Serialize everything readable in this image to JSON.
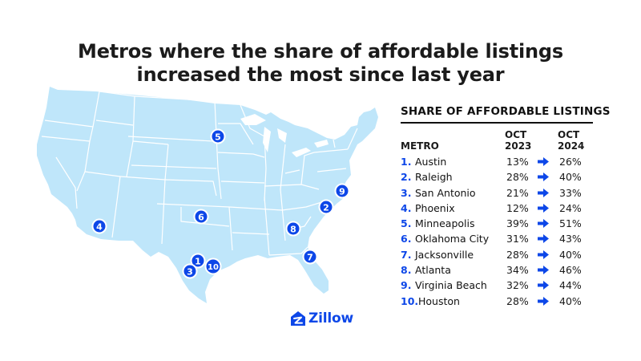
{
  "title": {
    "line1": "Metros where the share of affordable listings",
    "line2": "increased the most since last year"
  },
  "table": {
    "heading": "SHARE OF AFFORDABLE LISTINGS",
    "col_metro": "METRO",
    "col_2023_a": "OCT",
    "col_2023_b": "2023",
    "col_2024_a": "OCT",
    "col_2024_b": "2024",
    "rows": [
      {
        "rank": "1.",
        "name": "Austin",
        "oct2023": "13%",
        "oct2024": "26%"
      },
      {
        "rank": "2.",
        "name": "Raleigh",
        "oct2023": "28%",
        "oct2024": "40%"
      },
      {
        "rank": "3.",
        "name": "San Antonio",
        "oct2023": "21%",
        "oct2024": "33%"
      },
      {
        "rank": "4.",
        "name": "Phoenix",
        "oct2023": "12%",
        "oct2024": "24%"
      },
      {
        "rank": "5.",
        "name": "Minneapolis",
        "oct2023": "39%",
        "oct2024": "51%"
      },
      {
        "rank": "6.",
        "name": "Oklahoma City",
        "oct2023": "31%",
        "oct2024": "43%"
      },
      {
        "rank": "7.",
        "name": "Jacksonville",
        "oct2023": "28%",
        "oct2024": "40%"
      },
      {
        "rank": "8.",
        "name": "Atlanta",
        "oct2023": "34%",
        "oct2024": "46%"
      },
      {
        "rank": "9.",
        "name": "Virginia Beach",
        "oct2023": "32%",
        "oct2024": "44%"
      },
      {
        "rank": "10.",
        "name": " Houston",
        "oct2023": "28%",
        "oct2024": "40%"
      }
    ]
  },
  "map_markers": [
    {
      "label": "1",
      "metro": "Austin"
    },
    {
      "label": "2",
      "metro": "Raleigh"
    },
    {
      "label": "3",
      "metro": "San Antonio"
    },
    {
      "label": "4",
      "metro": "Phoenix"
    },
    {
      "label": "5",
      "metro": "Minneapolis"
    },
    {
      "label": "6",
      "metro": "Oklahoma City"
    },
    {
      "label": "7",
      "metro": "Jacksonville"
    },
    {
      "label": "8",
      "metro": "Atlanta"
    },
    {
      "label": "9",
      "metro": "Virginia Beach"
    },
    {
      "label": "10",
      "metro": "Houston"
    }
  ],
  "logo": {
    "text": "Zillow"
  },
  "colors": {
    "map_fill": "#bfe6fa",
    "map_lines": "#ffffff",
    "accent": "#0d47e8",
    "marker_border": "#ffffff"
  }
}
